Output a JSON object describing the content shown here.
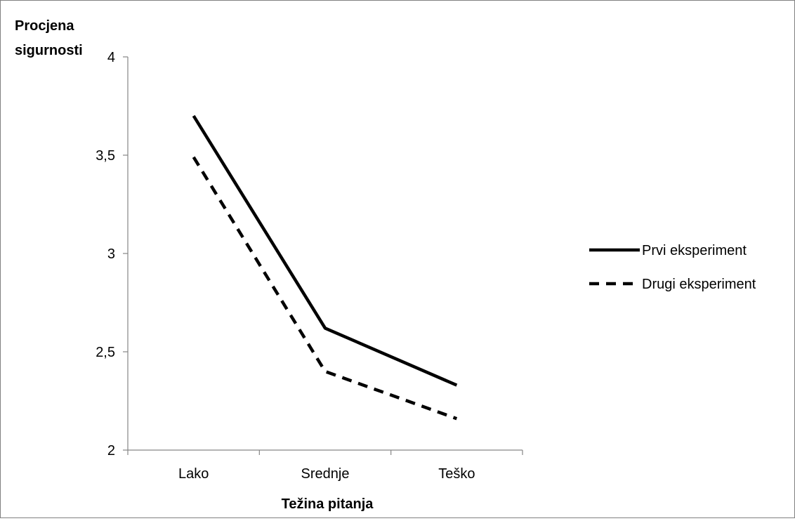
{
  "chart_data": {
    "type": "line",
    "categories": [
      "Lako",
      "Srednje",
      "Teško"
    ],
    "series": [
      {
        "name": "Prvi eksperiment",
        "values": [
          3.7,
          2.62,
          2.33
        ],
        "style": "solid",
        "color": "#000000"
      },
      {
        "name": "Drugi eksperiment",
        "values": [
          3.49,
          2.4,
          2.16
        ],
        "style": "dashed",
        "color": "#000000"
      }
    ],
    "xlabel": "Težina pitanja",
    "ylabel_lines": [
      "Procjena",
      "sigurnosti"
    ],
    "ylim": [
      2,
      4
    ],
    "yticks": [
      2,
      2.5,
      3,
      3.5,
      4
    ],
    "ytick_labels": [
      "2",
      "2,5",
      "3",
      "3,5",
      "4"
    ],
    "grid": false,
    "legend_position": "right"
  }
}
